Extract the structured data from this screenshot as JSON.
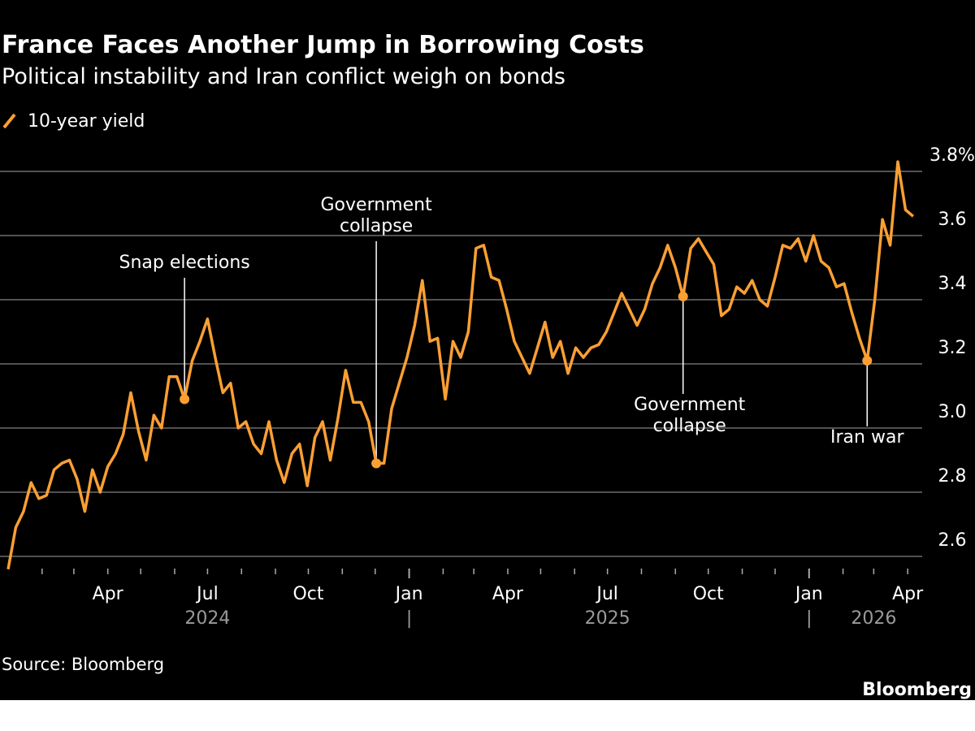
{
  "title": "France Faces Another Jump in Borrowing Costs",
  "subtitle": "Political instability and Iran conflict weigh on bonds",
  "source": "Source: Bloomberg",
  "logo": "Bloomberg",
  "chart_data": {
    "type": "line",
    "title": "France Faces Another Jump in Borrowing Costs",
    "subtitle": "Political instability and Iran conflict weigh on bonds",
    "legend": {
      "placement": "top-left"
    },
    "grid": true,
    "y_axis": {
      "position": "right",
      "ylim": [
        2.55,
        3.85
      ],
      "ticks": [
        "2.6",
        "2.8",
        "3.0",
        "3.2",
        "3.4",
        "3.6",
        "3.8%"
      ],
      "tick_values": [
        2.6,
        2.8,
        3.0,
        3.2,
        3.4,
        3.6,
        3.8
      ]
    },
    "x_axis": {
      "xlim": [
        "2024-01-01",
        "2026-04-30"
      ],
      "ticks": [
        {
          "label": "Apr",
          "date": "2024-04-01"
        },
        {
          "label": "Jul",
          "date": "2024-07-01"
        },
        {
          "label": "Oct",
          "date": "2024-10-01"
        },
        {
          "label": "Jan",
          "date": "2025-01-01"
        },
        {
          "label": "Apr",
          "date": "2025-04-01"
        },
        {
          "label": "Jul",
          "date": "2025-07-01"
        },
        {
          "label": "Oct",
          "date": "2025-10-01"
        },
        {
          "label": "Jan",
          "date": "2026-01-01"
        },
        {
          "label": "Apr",
          "date": "2026-04-01"
        }
      ],
      "years": [
        {
          "label": "2024",
          "date": "2024-07-01"
        },
        {
          "label": "|",
          "date": "2025-01-01"
        },
        {
          "label": "2025",
          "date": "2025-07-01"
        },
        {
          "label": "|",
          "date": "2026-01-01"
        },
        {
          "label": "2026",
          "date": "2026-03-01"
        }
      ]
    },
    "series": [
      {
        "name": "10-year yield",
        "color": "#fb9f33",
        "x": [
          "2024-01-01",
          "2024-01-08",
          "2024-01-15",
          "2024-01-22",
          "2024-01-29",
          "2024-02-05",
          "2024-02-12",
          "2024-02-19",
          "2024-02-26",
          "2024-03-04",
          "2024-03-11",
          "2024-03-18",
          "2024-03-25",
          "2024-04-01",
          "2024-04-08",
          "2024-04-15",
          "2024-04-22",
          "2024-04-29",
          "2024-05-06",
          "2024-05-13",
          "2024-05-20",
          "2024-05-27",
          "2024-06-03",
          "2024-06-10",
          "2024-06-17",
          "2024-06-24",
          "2024-07-01",
          "2024-07-08",
          "2024-07-15",
          "2024-07-22",
          "2024-07-29",
          "2024-08-05",
          "2024-08-12",
          "2024-08-19",
          "2024-08-26",
          "2024-09-02",
          "2024-09-09",
          "2024-09-16",
          "2024-09-23",
          "2024-09-30",
          "2024-10-07",
          "2024-10-14",
          "2024-10-21",
          "2024-10-28",
          "2024-11-04",
          "2024-11-11",
          "2024-11-18",
          "2024-11-25",
          "2024-12-02",
          "2024-12-09",
          "2024-12-16",
          "2024-12-23",
          "2024-12-30",
          "2025-01-06",
          "2025-01-13",
          "2025-01-20",
          "2025-01-27",
          "2025-02-03",
          "2025-02-10",
          "2025-02-17",
          "2025-02-24",
          "2025-03-03",
          "2025-03-10",
          "2025-03-17",
          "2025-03-24",
          "2025-03-31",
          "2025-04-07",
          "2025-04-14",
          "2025-04-21",
          "2025-04-28",
          "2025-05-05",
          "2025-05-12",
          "2025-05-19",
          "2025-05-26",
          "2025-06-02",
          "2025-06-09",
          "2025-06-16",
          "2025-06-23",
          "2025-06-30",
          "2025-07-07",
          "2025-07-14",
          "2025-07-21",
          "2025-07-28",
          "2025-08-04",
          "2025-08-11",
          "2025-08-18",
          "2025-08-25",
          "2025-09-01",
          "2025-09-08",
          "2025-09-15",
          "2025-09-22",
          "2025-09-29",
          "2025-10-06",
          "2025-10-13",
          "2025-10-20",
          "2025-10-27",
          "2025-11-03",
          "2025-11-10",
          "2025-11-17",
          "2025-11-24",
          "2025-12-01",
          "2025-12-08",
          "2025-12-15",
          "2025-12-22",
          "2025-12-29",
          "2026-01-05",
          "2026-01-12",
          "2026-01-19",
          "2026-01-26",
          "2026-02-02",
          "2026-02-09",
          "2026-02-16",
          "2026-02-23",
          "2026-03-02",
          "2026-03-09",
          "2026-03-16",
          "2026-03-23",
          "2026-03-30",
          "2026-04-06"
        ],
        "values": [
          2.56,
          2.69,
          2.74,
          2.83,
          2.78,
          2.79,
          2.87,
          2.89,
          2.9,
          2.84,
          2.74,
          2.87,
          2.8,
          2.88,
          2.92,
          2.98,
          3.11,
          2.99,
          2.9,
          3.04,
          3.0,
          3.16,
          3.16,
          3.09,
          3.21,
          3.27,
          3.34,
          3.22,
          3.11,
          3.14,
          3.0,
          3.02,
          2.95,
          2.92,
          3.02,
          2.9,
          2.83,
          2.92,
          2.95,
          2.82,
          2.97,
          3.02,
          2.9,
          3.03,
          3.18,
          3.08,
          3.08,
          3.02,
          2.89,
          2.89,
          3.06,
          3.14,
          3.22,
          3.32,
          3.46,
          3.27,
          3.28,
          3.09,
          3.27,
          3.22,
          3.3,
          3.56,
          3.57,
          3.47,
          3.46,
          3.37,
          3.27,
          3.22,
          3.17,
          3.25,
          3.33,
          3.22,
          3.27,
          3.17,
          3.25,
          3.22,
          3.25,
          3.26,
          3.3,
          3.36,
          3.42,
          3.37,
          3.32,
          3.37,
          3.45,
          3.5,
          3.57,
          3.5,
          3.41,
          3.56,
          3.59,
          3.55,
          3.51,
          3.35,
          3.37,
          3.44,
          3.42,
          3.46,
          3.4,
          3.38,
          3.47,
          3.57,
          3.56,
          3.59,
          3.52,
          3.6,
          3.52,
          3.5,
          3.44,
          3.45,
          3.36,
          3.28,
          3.21,
          3.4,
          3.65,
          3.57,
          3.83,
          3.68,
          3.66
        ]
      }
    ],
    "annotations": [
      {
        "lines": [
          "Snap elections"
        ],
        "date": "2024-06-10",
        "value": 3.09,
        "side": "above"
      },
      {
        "lines": [
          "Government",
          "collapse"
        ],
        "date": "2024-12-02",
        "value": 2.89,
        "side": "above"
      },
      {
        "lines": [
          "Government",
          "collapse"
        ],
        "date": "2025-09-08",
        "value": 3.41,
        "side": "below"
      },
      {
        "lines": [
          "Iran war"
        ],
        "date": "2026-02-23",
        "value": 3.21,
        "side": "below"
      }
    ]
  }
}
